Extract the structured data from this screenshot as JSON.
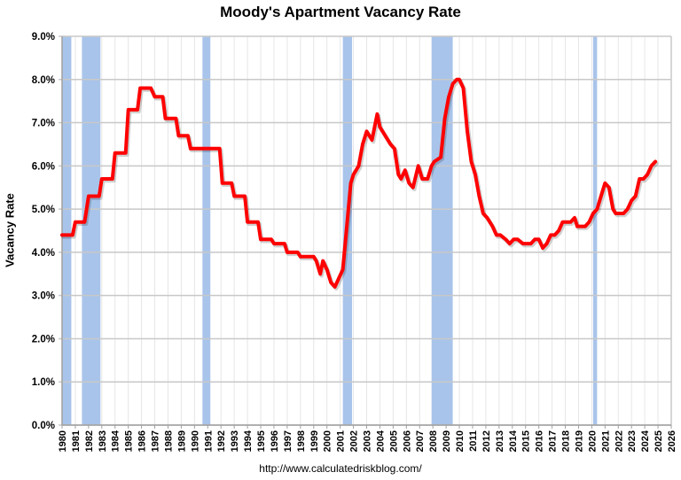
{
  "chart_data": {
    "type": "line",
    "title": "Moody's Apartment Vacancy Rate",
    "xlabel": "",
    "ylabel": "Vacancy Rate",
    "source_url": "http://www.calculatedriskblog.com/",
    "ylim": [
      0,
      9
    ],
    "xlim": [
      1980,
      2026
    ],
    "grid": {
      "horizontal": true,
      "vertical": true
    },
    "legend": null,
    "y_ticks": [
      "0.0%",
      "1.0%",
      "2.0%",
      "3.0%",
      "4.0%",
      "5.0%",
      "6.0%",
      "7.0%",
      "8.0%",
      "9.0%"
    ],
    "x_ticks": [
      "1980",
      "1981",
      "1982",
      "1983",
      "1984",
      "1985",
      "1986",
      "1987",
      "1988",
      "1989",
      "1990",
      "1991",
      "1992",
      "1993",
      "1994",
      "1995",
      "1996",
      "1997",
      "1998",
      "1999",
      "2000",
      "2001",
      "2002",
      "2003",
      "2004",
      "2005",
      "2006",
      "2007",
      "2008",
      "2009",
      "2010",
      "2011",
      "2012",
      "2013",
      "2014",
      "2015",
      "2016",
      "2017",
      "2018",
      "2019",
      "2020",
      "2021",
      "2022",
      "2023",
      "2024",
      "2025",
      "2026"
    ],
    "recessions": [
      {
        "start": 1980.0,
        "end": 1980.7
      },
      {
        "start": 1981.5,
        "end": 1982.9
      },
      {
        "start": 1990.6,
        "end": 1991.2
      },
      {
        "start": 2001.2,
        "end": 2001.9
      },
      {
        "start": 2007.9,
        "end": 2009.5
      },
      {
        "start": 2020.1,
        "end": 2020.4
      }
    ],
    "series": [
      {
        "name": "Vacancy Rate",
        "color": "#ff0000",
        "x": [
          1980.0,
          1980.8,
          1981.0,
          1981.7,
          1982.0,
          1982.8,
          1983.0,
          1983.8,
          1984.0,
          1984.8,
          1985.0,
          1985.7,
          1985.9,
          1986.7,
          1987.0,
          1987.6,
          1987.8,
          1988.6,
          1988.8,
          1989.5,
          1989.7,
          1990.3,
          1990.5,
          1991.9,
          1992.1,
          1992.8,
          1993.0,
          1993.8,
          1994.0,
          1994.8,
          1995.0,
          1995.8,
          1996.0,
          1996.8,
          1997.0,
          1997.8,
          1998.0,
          1999.0,
          1999.2,
          1999.5,
          1999.7,
          2000.0,
          2000.3,
          2000.6,
          2000.9,
          2001.2,
          2001.5,
          2001.8,
          2002.0,
          2002.4,
          2002.7,
          2003.0,
          2003.4,
          2003.8,
          2004.0,
          2004.4,
          2004.8,
          2005.1,
          2005.4,
          2005.6,
          2005.9,
          2006.2,
          2006.5,
          2006.9,
          2007.2,
          2007.6,
          2007.9,
          2008.1,
          2008.6,
          2008.9,
          2009.2,
          2009.5,
          2009.8,
          2010.0,
          2010.3,
          2010.6,
          2010.9,
          2011.2,
          2011.5,
          2011.8,
          2012.1,
          2012.5,
          2012.8,
          2013.1,
          2013.5,
          2013.8,
          2014.1,
          2014.4,
          2014.8,
          2015.1,
          2015.4,
          2015.7,
          2016.0,
          2016.3,
          2016.6,
          2016.9,
          2017.2,
          2017.5,
          2017.8,
          2018.1,
          2018.4,
          2018.7,
          2018.9,
          2019.2,
          2019.5,
          2019.8,
          2020.1,
          2020.4,
          2020.7,
          2021.0,
          2021.3,
          2021.6,
          2021.8,
          2022.1,
          2022.4,
          2022.7,
          2023.0,
          2023.3,
          2023.6,
          2023.9,
          2024.2,
          2024.5,
          2024.8
        ],
        "values": [
          4.4,
          4.4,
          4.7,
          4.7,
          5.3,
          5.3,
          5.7,
          5.7,
          6.3,
          6.3,
          7.3,
          7.3,
          7.8,
          7.8,
          7.6,
          7.6,
          7.1,
          7.1,
          6.7,
          6.7,
          6.4,
          6.4,
          6.4,
          6.4,
          5.6,
          5.6,
          5.3,
          5.3,
          4.7,
          4.7,
          4.3,
          4.3,
          4.2,
          4.2,
          4.0,
          4.0,
          3.9,
          3.9,
          3.8,
          3.5,
          3.8,
          3.6,
          3.3,
          3.2,
          3.4,
          3.6,
          4.6,
          5.6,
          5.8,
          6.0,
          6.5,
          6.8,
          6.6,
          7.2,
          6.9,
          6.7,
          6.5,
          6.4,
          5.8,
          5.7,
          5.9,
          5.6,
          5.5,
          6.0,
          5.7,
          5.7,
          6.0,
          6.1,
          6.2,
          7.1,
          7.6,
          7.9,
          8.0,
          8.0,
          7.8,
          6.8,
          6.1,
          5.8,
          5.3,
          4.9,
          4.8,
          4.6,
          4.4,
          4.4,
          4.3,
          4.2,
          4.3,
          4.3,
          4.2,
          4.2,
          4.2,
          4.3,
          4.3,
          4.1,
          4.2,
          4.4,
          4.4,
          4.5,
          4.7,
          4.7,
          4.7,
          4.8,
          4.6,
          4.6,
          4.6,
          4.7,
          4.9,
          5.0,
          5.3,
          5.6,
          5.5,
          5.0,
          4.9,
          4.9,
          4.9,
          5.0,
          5.2,
          5.3,
          5.7,
          5.7,
          5.8,
          6.0,
          6.1
        ]
      }
    ]
  },
  "colors": {
    "line": "#ff0000",
    "recession": "#a9c4ea",
    "grid": "#c8c8c8",
    "vgrid": "#e6e6e6"
  }
}
